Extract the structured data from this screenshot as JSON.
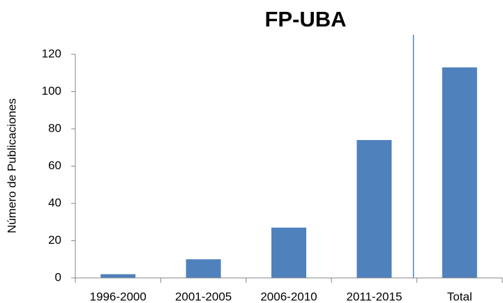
{
  "chart_data": {
    "type": "bar",
    "title": "FP-UBA",
    "y_label": "Número de Publicaciones",
    "categories": [
      "1996-2000",
      "2001-2005",
      "2006-2010",
      "2011-2015",
      "Total"
    ],
    "values": [
      2,
      10,
      27,
      74,
      113
    ],
    "color": "#4f81bd",
    "ylim": [
      0,
      120
    ],
    "yticks": [
      0,
      20,
      40,
      60,
      80,
      100,
      120
    ],
    "grid": false
  }
}
